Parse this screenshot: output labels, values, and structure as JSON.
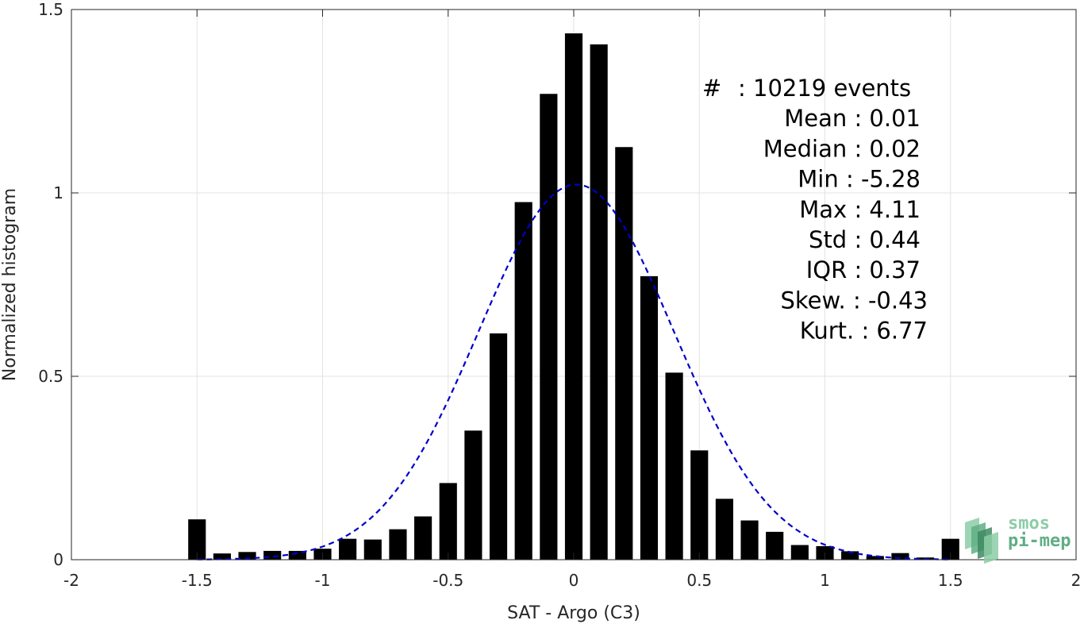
{
  "chart_data": {
    "type": "bar",
    "xlabel": "SAT - Argo (C3)",
    "ylabel": "Normalized histogram",
    "xlim": [
      -2,
      2
    ],
    "ylim": [
      0,
      1.5
    ],
    "grid": true,
    "x_ticks": [
      -2,
      -1.5,
      -1,
      -0.5,
      0,
      0.5,
      1,
      1.5,
      2
    ],
    "x_tick_labels": [
      "-2",
      "-1.5",
      "-1",
      "-0.5",
      "0",
      "0.5",
      "1",
      "1.5",
      "2"
    ],
    "y_ticks": [
      0,
      0.5,
      1,
      1.5
    ],
    "y_tick_labels": [
      "0",
      "0.5",
      "1",
      "1.5"
    ],
    "bins": {
      "centers": [
        -1.5,
        -1.4,
        -1.3,
        -1.2,
        -1.1,
        -1.0,
        -0.9,
        -0.8,
        -0.7,
        -0.6,
        -0.5,
        -0.4,
        -0.3,
        -0.2,
        -0.1,
        0.0,
        0.1,
        0.2,
        0.3,
        0.4,
        0.5,
        0.6,
        0.7,
        0.8,
        0.9,
        1.0,
        1.1,
        1.2,
        1.3,
        1.4,
        1.5
      ],
      "values": [
        0.11,
        0.017,
        0.021,
        0.024,
        0.024,
        0.03,
        0.057,
        0.055,
        0.083,
        0.118,
        0.209,
        0.352,
        0.617,
        0.975,
        1.27,
        1.435,
        1.405,
        1.125,
        0.773,
        0.51,
        0.298,
        0.166,
        0.107,
        0.076,
        0.04,
        0.037,
        0.023,
        0.01,
        0.018,
        0.006,
        0.057
      ],
      "color": "#000000"
    },
    "fit": {
      "type": "gaussian",
      "mean": 0.01,
      "std": 0.39,
      "x_range": [
        -1.5,
        1.5
      ],
      "color": "#0000cc",
      "style": "dashed"
    },
    "stats": [
      {
        "label": "#  ",
        "value": ": 10219 events"
      },
      {
        "label": "Mean",
        "value": ": 0.01"
      },
      {
        "label": "Median",
        "value": ": 0.02"
      },
      {
        "label": "Min",
        "value": ": -5.28"
      },
      {
        "label": "Max",
        "value": ": 4.11"
      },
      {
        "label": "Std",
        "value": ": 0.44"
      },
      {
        "label": "IQR",
        "value": ": 0.37"
      },
      {
        "label": "Skew.",
        "value": ": -0.43"
      },
      {
        "label": "Kurt.",
        "value": ": 6.77"
      }
    ]
  },
  "logo": {
    "line1": "smos",
    "line2": "pi-mep",
    "colors": [
      "#8ccca7",
      "#5fae84",
      "#3d8a62"
    ]
  }
}
